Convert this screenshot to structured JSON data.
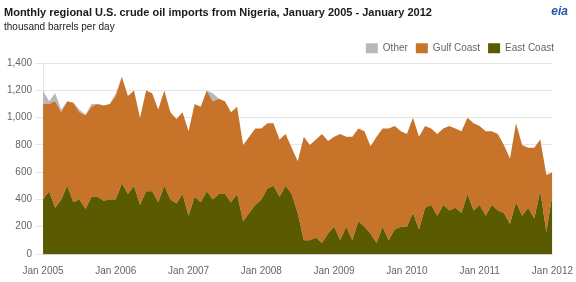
{
  "chart_data": {
    "type": "area",
    "title": "Monthly regional U.S. crude oil imports from Nigeria, January 2005 - January 2012",
    "subtitle": "thousand barrels per day",
    "annotations": [
      {
        "text": "eia",
        "color": "#2255aa"
      }
    ],
    "categories": [
      "Jan 2005",
      null,
      null,
      null,
      null,
      null,
      null,
      null,
      null,
      null,
      null,
      null,
      "Jan 2006",
      null,
      null,
      null,
      null,
      null,
      null,
      null,
      null,
      null,
      null,
      null,
      "Jan 2007",
      null,
      null,
      null,
      null,
      null,
      null,
      null,
      null,
      null,
      null,
      null,
      "Jan 2008",
      null,
      null,
      null,
      null,
      null,
      null,
      null,
      null,
      null,
      null,
      null,
      "Jan 2009",
      null,
      null,
      null,
      null,
      null,
      null,
      null,
      null,
      null,
      null,
      null,
      "Jan 2010",
      null,
      null,
      null,
      null,
      null,
      null,
      null,
      null,
      null,
      null,
      null,
      "Jan 2011",
      null,
      null,
      null,
      null,
      null,
      null,
      null,
      null,
      null,
      null,
      null,
      "Jan 2012"
    ],
    "series": [
      {
        "name": "East Coast",
        "color": "#5a5a00",
        "values": [
          400,
          460,
          340,
          400,
          500,
          380,
          400,
          330,
          420,
          420,
          390,
          400,
          400,
          520,
          440,
          500,
          360,
          460,
          460,
          380,
          500,
          400,
          370,
          440,
          280,
          420,
          380,
          460,
          400,
          440,
          440,
          380,
          440,
          240,
          300,
          360,
          400,
          480,
          500,
          420,
          500,
          440,
          300,
          100,
          100,
          120,
          80,
          150,
          200,
          100,
          200,
          100,
          240,
          200,
          150,
          80,
          200,
          100,
          180,
          200,
          200,
          300,
          180,
          340,
          360,
          280,
          360,
          320,
          340,
          300,
          440,
          320,
          360,
          280,
          360,
          320,
          300,
          220,
          380,
          280,
          340,
          260,
          460,
          160,
          440
        ]
      },
      {
        "name": "Gulf Coast",
        "color": "#c8732a",
        "values": [
          700,
          640,
          780,
          640,
          620,
          730,
          640,
          690,
          660,
          680,
          700,
          700,
          760,
          780,
          720,
          700,
          640,
          740,
          720,
          680,
          700,
          640,
          620,
          600,
          620,
          680,
          700,
          740,
          720,
          700,
          680,
          660,
          640,
          560,
          560,
          560,
          520,
          480,
          460,
          420,
          380,
          340,
          380,
          760,
          700,
          720,
          800,
          680,
          660,
          780,
          660,
          760,
          680,
          700,
          640,
          780,
          720,
          820,
          760,
          700,
          680,
          700,
          680,
          600,
          560,
          600,
          560,
          620,
          580,
          600,
          560,
          640,
          580,
          620,
          540,
          560,
          500,
          480,
          580,
          520,
          440,
          520,
          380,
          420,
          160
        ]
      },
      {
        "name": "Other",
        "color": "#b8b8b8",
        "values": [
          100,
          20,
          60,
          20,
          0,
          0,
          20,
          0,
          20,
          0,
          0,
          0,
          20,
          0,
          0,
          0,
          0,
          0,
          0,
          0,
          0,
          0,
          0,
          0,
          0,
          0,
          0,
          0,
          60,
          0,
          0,
          0,
          0,
          0,
          0,
          0,
          0,
          0,
          0,
          0,
          0,
          0,
          0,
          0,
          0,
          0,
          0,
          0,
          0,
          0,
          0,
          0,
          0,
          0,
          0,
          0,
          0,
          0,
          0,
          0,
          0,
          0,
          0,
          0,
          0,
          0,
          0,
          0,
          0,
          0,
          0,
          0,
          0,
          0,
          0,
          0,
          0,
          0,
          0,
          0,
          0,
          0,
          0,
          0,
          0
        ]
      }
    ],
    "stacked": true,
    "ylim": [
      0,
      1400
    ],
    "yticks": [
      0,
      200,
      400,
      600,
      800,
      {
        "value": 1000,
        "label": "1,000"
      },
      {
        "value": 1200,
        "label": "1,200"
      },
      {
        "value": 1400,
        "label": "1,400"
      }
    ],
    "grid": "y",
    "legend": "top-right"
  }
}
